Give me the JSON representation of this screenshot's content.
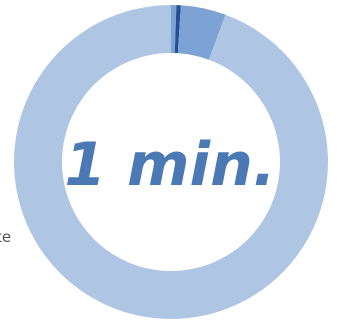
{
  "chart_data": {
    "type": "pie",
    "donut": true,
    "center_label": "1 min.",
    "center_label_color": "#4a79b3",
    "slices": [
      {
        "value": 0.55,
        "color": "#7da3d4"
      },
      {
        "value": 0.45,
        "color": "#254f92"
      },
      {
        "value": 4.65,
        "color": "#7da3d4"
      },
      {
        "value": 94.35,
        "color": "#aec6e4"
      }
    ],
    "start_angle_deg": 0,
    "direction": "clockwise"
  },
  "side_text": "te"
}
